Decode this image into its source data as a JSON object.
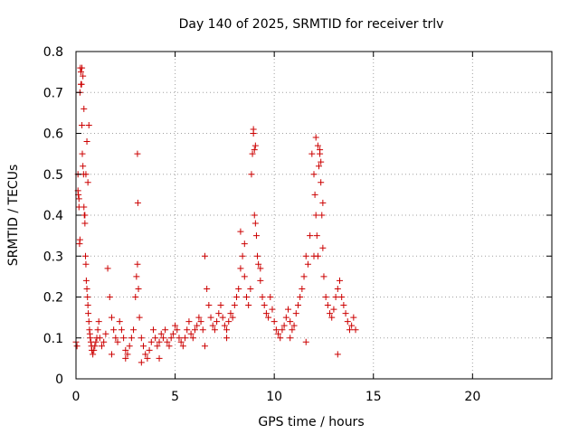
{
  "chart_data": {
    "type": "scatter",
    "title": "Day 140 of 2025, SRMTID for receiver trlv",
    "xlabel": "GPS time / hours",
    "ylabel": "SRMTID / TECUs",
    "xlim": [
      0,
      24
    ],
    "ylim": [
      0,
      0.8
    ],
    "x_ticks": [
      0,
      5,
      10,
      15,
      20
    ],
    "x_tick_labels": [
      "0",
      "5",
      "10",
      "15",
      "20"
    ],
    "y_ticks": [
      0,
      0.1,
      0.2,
      0.3,
      0.4,
      0.5,
      0.6,
      0.7,
      0.8
    ],
    "y_tick_labels": [
      "0",
      "0.1",
      "0.2",
      "0.3",
      "0.4",
      "0.5",
      "0.6",
      "0.7",
      "0.8"
    ],
    "grid": true,
    "marker": "plus",
    "series": [
      {
        "name": "SRMTID",
        "color": "#cc0000",
        "x": [
          0.0,
          0.05,
          0.1,
          0.12,
          0.15,
          0.18,
          0.2,
          0.22,
          0.25,
          0.28,
          0.3,
          0.32,
          0.35,
          0.38,
          0.4,
          0.42,
          0.45,
          0.48,
          0.5,
          0.52,
          0.55,
          0.58,
          0.6,
          0.62,
          0.65,
          0.68,
          0.7,
          0.72,
          0.75,
          0.78,
          0.8,
          0.85,
          0.9,
          0.95,
          1.0,
          1.05,
          1.1,
          1.15,
          1.2,
          1.3,
          1.4,
          1.5,
          1.6,
          1.7,
          1.8,
          1.9,
          2.0,
          2.1,
          2.2,
          2.3,
          2.4,
          2.5,
          2.6,
          2.7,
          2.8,
          2.9,
          3.0,
          3.05,
          3.1,
          3.15,
          3.2,
          3.3,
          3.4,
          3.5,
          3.6,
          3.7,
          3.8,
          3.9,
          4.0,
          4.1,
          4.2,
          4.3,
          4.4,
          4.5,
          4.6,
          4.7,
          4.8,
          4.9,
          5.0,
          5.1,
          5.2,
          5.3,
          5.4,
          5.5,
          5.6,
          5.7,
          5.8,
          5.9,
          6.0,
          6.1,
          6.2,
          6.3,
          6.4,
          6.5,
          6.6,
          6.7,
          6.8,
          6.9,
          7.0,
          7.1,
          7.2,
          7.3,
          7.4,
          7.5,
          7.6,
          7.7,
          7.8,
          7.9,
          8.0,
          8.1,
          8.2,
          8.3,
          8.4,
          8.5,
          8.6,
          8.7,
          8.8,
          8.85,
          8.9,
          8.95,
          9.0,
          9.05,
          9.1,
          9.15,
          9.2,
          9.3,
          9.4,
          9.5,
          9.6,
          9.7,
          9.8,
          9.9,
          10.0,
          10.1,
          10.2,
          10.3,
          10.4,
          10.5,
          10.6,
          10.7,
          10.8,
          10.9,
          11.0,
          11.1,
          11.2,
          11.3,
          11.4,
          11.5,
          11.6,
          11.7,
          11.8,
          11.9,
          12.0,
          12.05,
          12.1,
          12.15,
          12.2,
          12.25,
          12.3,
          12.35,
          12.4,
          12.45,
          12.5,
          12.6,
          12.7,
          12.8,
          12.9,
          13.0,
          13.1,
          13.2,
          13.3,
          13.4,
          13.5,
          13.6,
          13.7,
          13.8,
          13.9,
          14.0,
          14.1,
          0.25,
          0.3,
          0.35,
          0.4,
          0.1,
          0.15,
          0.5,
          0.55,
          0.6,
          0.2,
          0.45,
          0.65,
          3.1,
          3.12,
          8.95,
          9.0,
          9.05,
          12.1,
          12.2,
          12.3,
          12.35,
          8.3,
          8.5,
          9.3,
          12.0,
          12.45,
          1.8,
          2.5,
          3.3,
          4.2,
          6.5,
          7.6,
          10.8,
          11.6,
          13.2
        ],
        "y": [
          0.09,
          0.08,
          0.5,
          0.45,
          0.42,
          0.33,
          0.7,
          0.76,
          0.75,
          0.72,
          0.62,
          0.55,
          0.52,
          0.5,
          0.42,
          0.4,
          0.38,
          0.3,
          0.28,
          0.24,
          0.22,
          0.2,
          0.18,
          0.16,
          0.14,
          0.12,
          0.11,
          0.1,
          0.09,
          0.08,
          0.07,
          0.06,
          0.07,
          0.08,
          0.09,
          0.1,
          0.12,
          0.14,
          0.1,
          0.08,
          0.09,
          0.11,
          0.27,
          0.2,
          0.15,
          0.12,
          0.1,
          0.09,
          0.14,
          0.12,
          0.1,
          0.07,
          0.06,
          0.08,
          0.1,
          0.12,
          0.2,
          0.25,
          0.28,
          0.22,
          0.15,
          0.1,
          0.08,
          0.06,
          0.05,
          0.07,
          0.09,
          0.12,
          0.1,
          0.08,
          0.09,
          0.11,
          0.1,
          0.12,
          0.09,
          0.08,
          0.1,
          0.11,
          0.13,
          0.12,
          0.1,
          0.09,
          0.08,
          0.1,
          0.12,
          0.14,
          0.11,
          0.1,
          0.12,
          0.13,
          0.15,
          0.14,
          0.12,
          0.3,
          0.22,
          0.18,
          0.15,
          0.13,
          0.12,
          0.14,
          0.16,
          0.18,
          0.15,
          0.13,
          0.12,
          0.14,
          0.16,
          0.15,
          0.18,
          0.2,
          0.22,
          0.36,
          0.3,
          0.25,
          0.2,
          0.18,
          0.22,
          0.5,
          0.55,
          0.6,
          0.4,
          0.38,
          0.35,
          0.3,
          0.28,
          0.24,
          0.2,
          0.18,
          0.16,
          0.15,
          0.2,
          0.17,
          0.14,
          0.12,
          0.11,
          0.1,
          0.12,
          0.13,
          0.15,
          0.17,
          0.14,
          0.12,
          0.13,
          0.16,
          0.18,
          0.2,
          0.22,
          0.25,
          0.3,
          0.28,
          0.35,
          0.55,
          0.5,
          0.45,
          0.4,
          0.35,
          0.3,
          0.52,
          0.55,
          0.48,
          0.4,
          0.32,
          0.25,
          0.2,
          0.18,
          0.16,
          0.15,
          0.17,
          0.2,
          0.22,
          0.24,
          0.2,
          0.18,
          0.16,
          0.14,
          0.12,
          0.13,
          0.15,
          0.12,
          0.72,
          0.76,
          0.74,
          0.66,
          0.46,
          0.44,
          0.5,
          0.58,
          0.48,
          0.34,
          0.4,
          0.62,
          0.55,
          0.43,
          0.61,
          0.56,
          0.57,
          0.59,
          0.57,
          0.56,
          0.53,
          0.27,
          0.33,
          0.27,
          0.3,
          0.43,
          0.06,
          0.05,
          0.04,
          0.05,
          0.08,
          0.1,
          0.1,
          0.09,
          0.06
        ]
      }
    ]
  }
}
